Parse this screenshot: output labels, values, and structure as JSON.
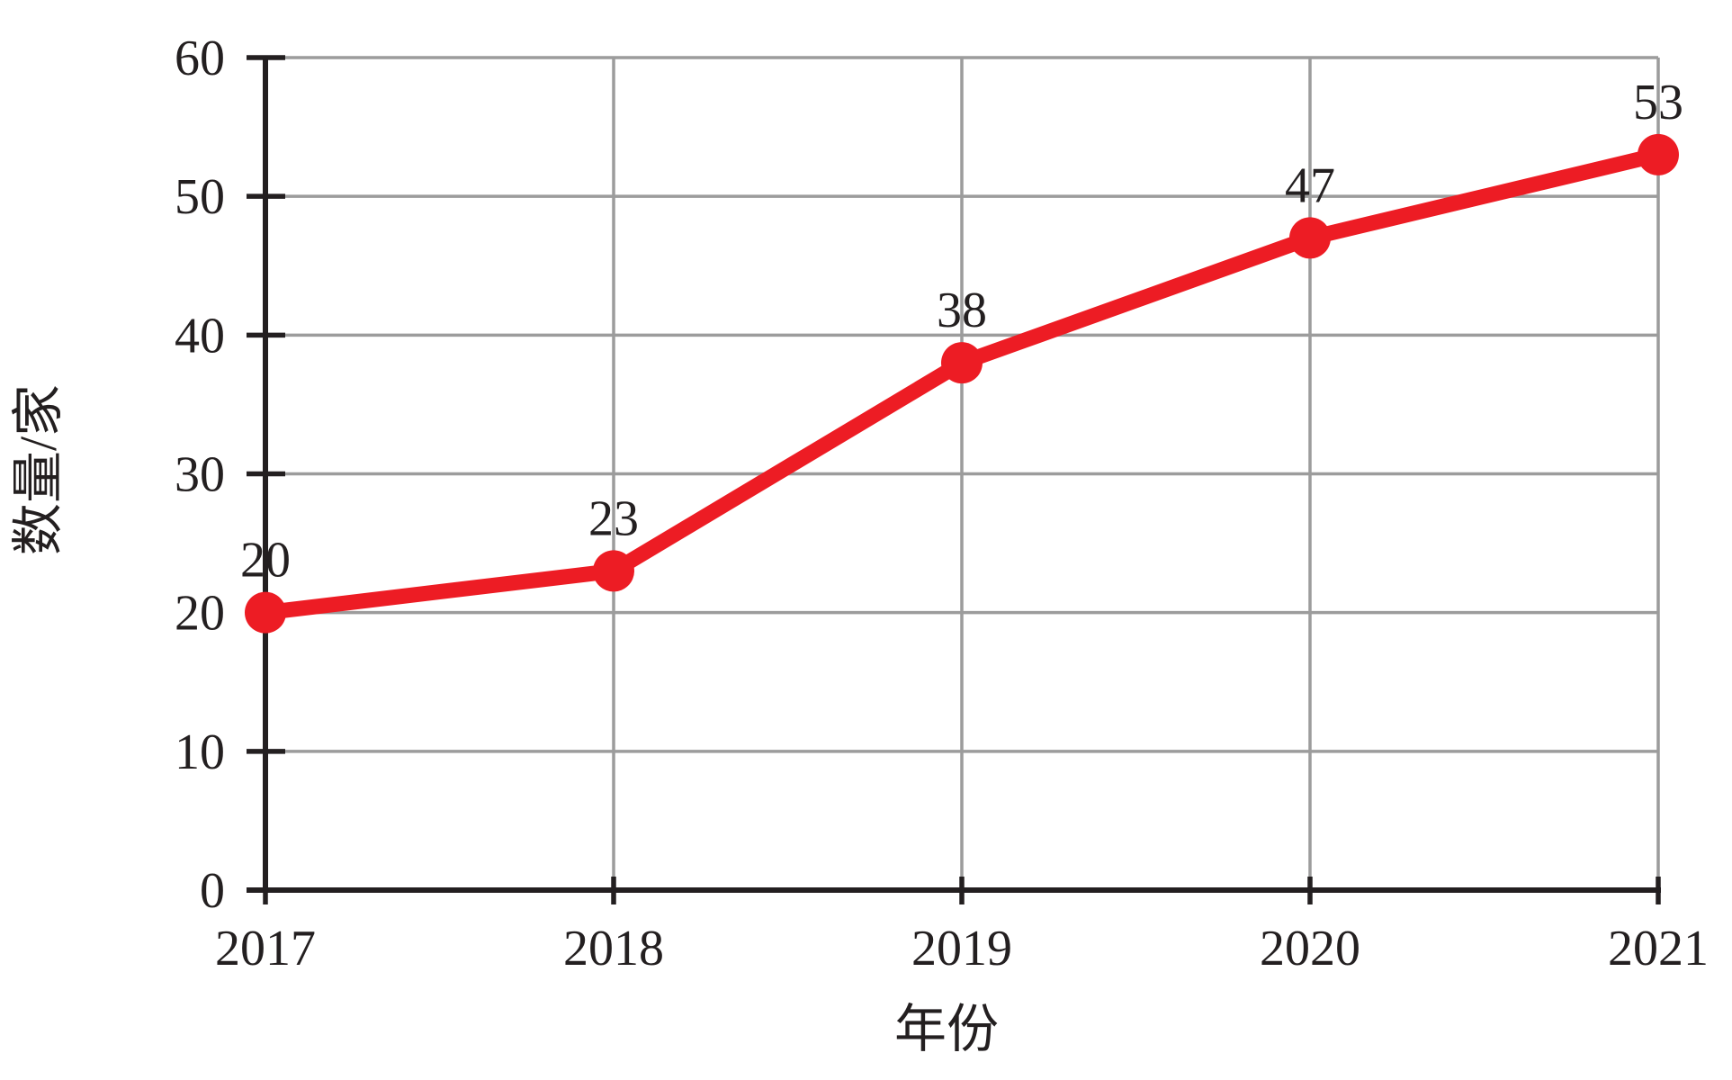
{
  "chart_data": {
    "type": "line",
    "categories": [
      "2017",
      "2018",
      "2019",
      "2020",
      "2021"
    ],
    "values": [
      20,
      23,
      38,
      47,
      53
    ],
    "data_labels": [
      "20",
      "23",
      "38",
      "47",
      "53"
    ],
    "title": "",
    "xlabel": "年份",
    "ylabel": "数量/家",
    "ylim": [
      0,
      60
    ],
    "yticks": [
      0,
      10,
      20,
      30,
      40,
      50,
      60
    ],
    "ytick_labels": [
      "0",
      "10",
      "20",
      "30",
      "40",
      "50",
      "60"
    ],
    "grid": true,
    "legend": "none",
    "marker": "circle",
    "colors": {
      "line": "#ED1C24",
      "marker": "#ED1C24",
      "grid": "#9C9C9C",
      "axis": "#231F20",
      "text": "#231F20"
    }
  }
}
